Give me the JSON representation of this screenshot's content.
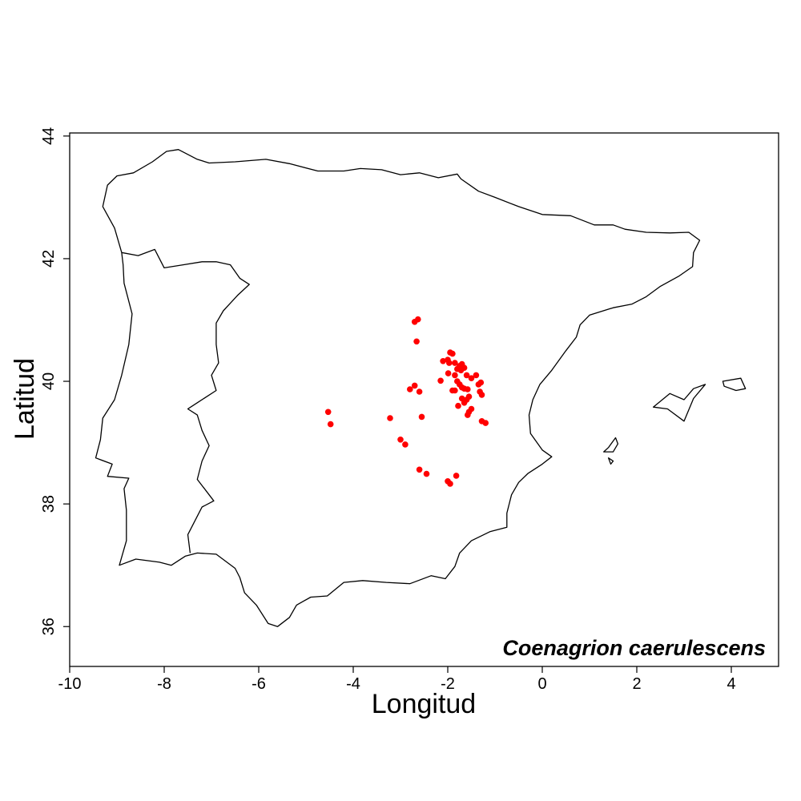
{
  "map": {
    "species_label": "Coenagrion caerulescens",
    "xlabel": "Longitud",
    "ylabel": "Latitud",
    "xlim": [
      -10,
      5
    ],
    "ylim": [
      35.35,
      44.05
    ],
    "x_ticks": [
      -10,
      -8,
      -6,
      -4,
      -2,
      0,
      2,
      4
    ],
    "y_ticks": [
      36,
      38,
      40,
      42,
      44
    ],
    "point_color": "#ff0000",
    "outline_color": "#000000",
    "occurrences": [
      [
        -2.63,
        41.01
      ],
      [
        -2.7,
        40.97
      ],
      [
        -2.66,
        40.65
      ],
      [
        -2.0,
        40.35
      ],
      [
        -1.95,
        40.47
      ],
      [
        -1.9,
        40.45
      ],
      [
        -1.97,
        40.3
      ],
      [
        -1.85,
        40.3
      ],
      [
        -1.8,
        40.2
      ],
      [
        -1.75,
        40.25
      ],
      [
        -1.7,
        40.28
      ],
      [
        -1.72,
        40.18
      ],
      [
        -1.65,
        40.22
      ],
      [
        -2.1,
        40.33
      ],
      [
        -1.99,
        40.13
      ],
      [
        -2.15,
        40.01
      ],
      [
        -1.85,
        40.1
      ],
      [
        -1.8,
        40.0
      ],
      [
        -1.75,
        39.95
      ],
      [
        -1.9,
        39.85
      ],
      [
        -1.85,
        39.85
      ],
      [
        -1.7,
        39.9
      ],
      [
        -1.65,
        39.88
      ],
      [
        -1.58,
        39.87
      ],
      [
        -1.7,
        39.72
      ],
      [
        -1.6,
        39.7
      ],
      [
        -1.55,
        39.75
      ],
      [
        -1.78,
        39.6
      ],
      [
        -1.65,
        39.65
      ],
      [
        -1.55,
        39.5
      ],
      [
        -1.5,
        39.55
      ],
      [
        -1.58,
        39.45
      ],
      [
        -1.4,
        40.1
      ],
      [
        -1.35,
        39.95
      ],
      [
        -1.3,
        39.98
      ],
      [
        -1.32,
        39.83
      ],
      [
        -1.28,
        39.78
      ],
      [
        -1.28,
        39.35
      ],
      [
        -1.2,
        39.32
      ],
      [
        -1.5,
        40.05
      ],
      [
        -1.6,
        40.1
      ],
      [
        -2.7,
        39.93
      ],
      [
        -2.8,
        39.87
      ],
      [
        -2.6,
        39.83
      ],
      [
        -2.55,
        39.42
      ],
      [
        -4.53,
        39.5
      ],
      [
        -4.48,
        39.3
      ],
      [
        -3.22,
        39.4
      ],
      [
        -3.0,
        39.05
      ],
      [
        -2.9,
        38.97
      ],
      [
        -2.6,
        38.56
      ],
      [
        -2.45,
        38.49
      ],
      [
        -2.0,
        38.37
      ],
      [
        -1.95,
        38.33
      ],
      [
        -1.82,
        38.46
      ]
    ],
    "mainland_outline": [
      [
        -9.2,
        43.2
      ],
      [
        -9.0,
        43.35
      ],
      [
        -8.65,
        43.4
      ],
      [
        -8.25,
        43.58
      ],
      [
        -7.95,
        43.75
      ],
      [
        -7.7,
        43.78
      ],
      [
        -7.3,
        43.62
      ],
      [
        -7.05,
        43.56
      ],
      [
        -6.5,
        43.58
      ],
      [
        -5.85,
        43.62
      ],
      [
        -5.35,
        43.55
      ],
      [
        -4.75,
        43.43
      ],
      [
        -4.2,
        43.43
      ],
      [
        -3.85,
        43.47
      ],
      [
        -3.4,
        43.45
      ],
      [
        -3.0,
        43.37
      ],
      [
        -2.6,
        43.4
      ],
      [
        -2.2,
        43.32
      ],
      [
        -1.8,
        43.38
      ],
      [
        -1.72,
        43.3
      ],
      [
        -1.35,
        43.1
      ],
      [
        -1.0,
        43.0
      ],
      [
        -0.5,
        42.85
      ],
      [
        0.0,
        42.72
      ],
      [
        0.6,
        42.7
      ],
      [
        1.1,
        42.55
      ],
      [
        1.5,
        42.55
      ],
      [
        1.75,
        42.48
      ],
      [
        2.2,
        42.43
      ],
      [
        2.7,
        42.42
      ],
      [
        3.1,
        42.43
      ],
      [
        3.33,
        42.3
      ],
      [
        3.2,
        42.1
      ],
      [
        3.18,
        41.87
      ],
      [
        2.9,
        41.72
      ],
      [
        2.5,
        41.55
      ],
      [
        2.2,
        41.38
      ],
      [
        1.9,
        41.26
      ],
      [
        1.5,
        41.2
      ],
      [
        1.0,
        41.08
      ],
      [
        0.8,
        40.92
      ],
      [
        0.72,
        40.72
      ],
      [
        0.5,
        40.5
      ],
      [
        0.2,
        40.18
      ],
      [
        -0.05,
        39.95
      ],
      [
        -0.2,
        39.7
      ],
      [
        -0.28,
        39.45
      ],
      [
        -0.25,
        39.15
      ],
      [
        0.0,
        38.88
      ],
      [
        0.2,
        38.77
      ],
      [
        0.0,
        38.65
      ],
      [
        -0.3,
        38.5
      ],
      [
        -0.5,
        38.35
      ],
      [
        -0.65,
        38.15
      ],
      [
        -0.75,
        37.85
      ],
      [
        -0.75,
        37.62
      ],
      [
        -1.1,
        37.55
      ],
      [
        -1.5,
        37.4
      ],
      [
        -1.75,
        37.2
      ],
      [
        -1.85,
        36.98
      ],
      [
        -2.05,
        36.78
      ],
      [
        -2.35,
        36.83
      ],
      [
        -2.8,
        36.7
      ],
      [
        -3.3,
        36.72
      ],
      [
        -3.8,
        36.75
      ],
      [
        -4.2,
        36.72
      ],
      [
        -4.55,
        36.5
      ],
      [
        -4.9,
        36.48
      ],
      [
        -5.2,
        36.35
      ],
      [
        -5.35,
        36.15
      ],
      [
        -5.6,
        36.0
      ],
      [
        -5.8,
        36.05
      ],
      [
        -6.05,
        36.35
      ],
      [
        -6.3,
        36.55
      ],
      [
        -6.4,
        36.8
      ],
      [
        -6.5,
        36.95
      ],
      [
        -6.9,
        37.18
      ],
      [
        -7.3,
        37.2
      ],
      [
        -7.55,
        37.15
      ],
      [
        -7.85,
        37.0
      ],
      [
        -8.1,
        37.05
      ],
      [
        -8.6,
        37.1
      ],
      [
        -8.95,
        37.0
      ],
      [
        -8.8,
        37.4
      ],
      [
        -8.8,
        37.9
      ],
      [
        -8.85,
        38.25
      ],
      [
        -8.75,
        38.42
      ],
      [
        -9.2,
        38.45
      ],
      [
        -9.1,
        38.65
      ],
      [
        -9.45,
        38.75
      ],
      [
        -9.35,
        39.05
      ],
      [
        -9.3,
        39.4
      ],
      [
        -9.05,
        39.7
      ],
      [
        -8.9,
        40.1
      ],
      [
        -8.75,
        40.6
      ],
      [
        -8.68,
        41.1
      ],
      [
        -8.85,
        41.6
      ],
      [
        -8.87,
        41.9
      ],
      [
        -8.9,
        42.1
      ],
      [
        -9.05,
        42.5
      ],
      [
        -9.3,
        42.85
      ],
      [
        -9.2,
        43.2
      ]
    ],
    "portugal_border": [
      [
        -8.9,
        42.1
      ],
      [
        -8.55,
        42.05
      ],
      [
        -8.2,
        42.15
      ],
      [
        -8.0,
        41.85
      ],
      [
        -7.6,
        41.9
      ],
      [
        -7.2,
        41.95
      ],
      [
        -6.9,
        41.95
      ],
      [
        -6.6,
        41.9
      ],
      [
        -6.4,
        41.68
      ],
      [
        -6.2,
        41.58
      ],
      [
        -6.45,
        41.4
      ],
      [
        -6.75,
        41.15
      ],
      [
        -6.9,
        40.95
      ],
      [
        -6.9,
        40.6
      ],
      [
        -6.85,
        40.3
      ],
      [
        -7.0,
        40.1
      ],
      [
        -6.9,
        39.85
      ],
      [
        -7.3,
        39.65
      ],
      [
        -7.5,
        39.55
      ],
      [
        -7.3,
        39.45
      ],
      [
        -7.2,
        39.2
      ],
      [
        -7.05,
        38.95
      ],
      [
        -7.2,
        38.7
      ],
      [
        -7.3,
        38.4
      ],
      [
        -7.1,
        38.2
      ],
      [
        -6.95,
        38.05
      ],
      [
        -7.2,
        37.95
      ],
      [
        -7.5,
        37.5
      ],
      [
        -7.45,
        37.2
      ]
    ],
    "islands": [
      [
        [
          3.0,
          39.7
        ],
        [
          3.2,
          39.88
        ],
        [
          3.45,
          39.95
        ],
        [
          3.2,
          39.72
        ],
        [
          3.0,
          39.35
        ],
        [
          2.65,
          39.55
        ],
        [
          2.35,
          39.58
        ],
        [
          2.7,
          39.8
        ],
        [
          3.0,
          39.7
        ]
      ],
      [
        [
          3.82,
          40.0
        ],
        [
          4.2,
          40.05
        ],
        [
          4.3,
          39.88
        ],
        [
          4.1,
          39.85
        ],
        [
          3.85,
          39.92
        ],
        [
          3.82,
          40.0
        ]
      ],
      [
        [
          1.4,
          38.92
        ],
        [
          1.55,
          39.08
        ],
        [
          1.6,
          38.98
        ],
        [
          1.5,
          38.85
        ],
        [
          1.3,
          38.85
        ],
        [
          1.4,
          38.92
        ]
      ],
      [
        [
          1.4,
          38.75
        ],
        [
          1.5,
          38.7
        ],
        [
          1.45,
          38.65
        ],
        [
          1.4,
          38.75
        ]
      ]
    ]
  }
}
